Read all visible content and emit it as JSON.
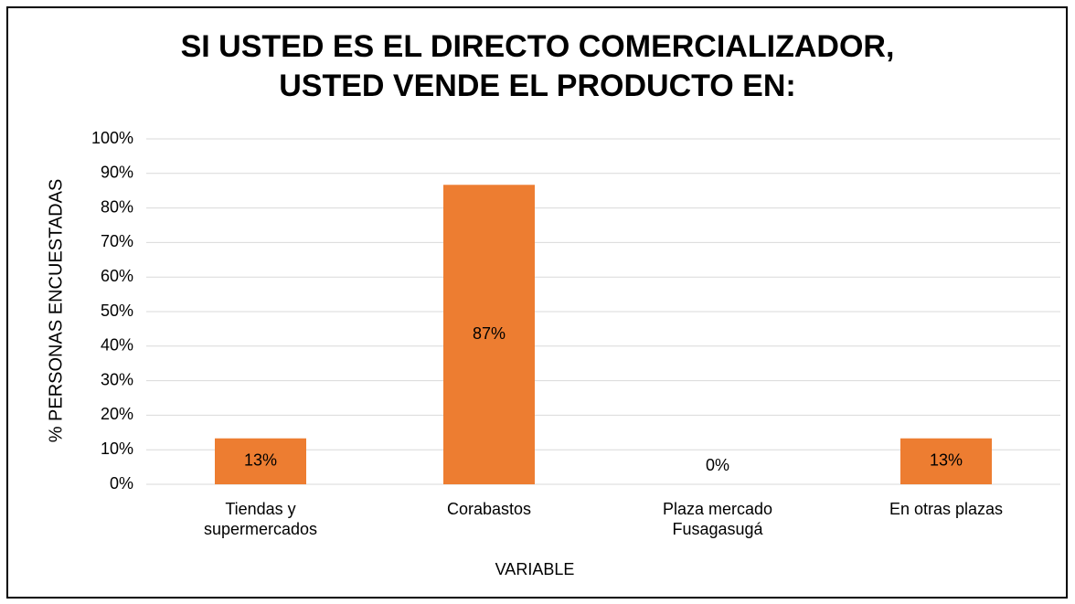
{
  "chart_data": {
    "type": "bar",
    "title": "SI USTED ES EL DIRECTO COMERCIALIZADOR, USTED VENDE EL PRODUCTO EN:",
    "x_label": "VARIABLE",
    "y_label": "% PERSONAS ENCUESTADAS",
    "categories": [
      "Tiendas y supermercados",
      "Corabastos",
      "Plaza mercado Fusagasugá",
      "En otras plazas"
    ],
    "values": [
      13.3,
      86.7,
      0,
      13.3
    ],
    "value_labels": [
      "13%",
      "87%",
      "0%",
      "13%"
    ],
    "color": "#ED7D31",
    "ylim": [
      0,
      100
    ],
    "yticks": [
      {
        "value": 0,
        "label": "0%"
      },
      {
        "value": 10,
        "label": "10%"
      },
      {
        "value": 20,
        "label": "20%"
      },
      {
        "value": 30,
        "label": "30%"
      },
      {
        "value": 40,
        "label": "40%"
      },
      {
        "value": 50,
        "label": "50%"
      },
      {
        "value": 60,
        "label": "60%"
      },
      {
        "value": 70,
        "label": "70%"
      },
      {
        "value": 80,
        "label": "80%"
      },
      {
        "value": 90,
        "label": "90%"
      },
      {
        "value": 100,
        "label": "100%"
      }
    ],
    "grid": true
  }
}
